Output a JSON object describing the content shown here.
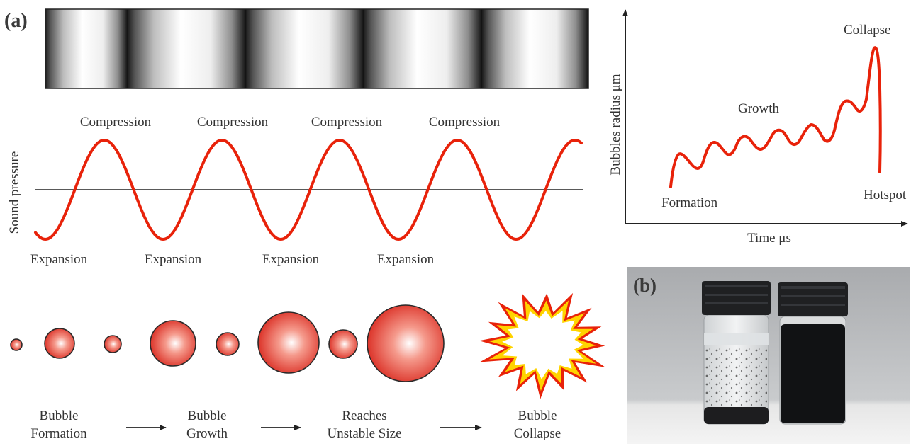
{
  "panel_a": {
    "tag": "(a)",
    "wave": {
      "ylabel": "Sound pressure",
      "peaks": [
        "Compression",
        "Compression",
        "Compression",
        "Compression"
      ],
      "troughs": [
        "Expansion",
        "Expansion",
        "Expansion",
        "Expansion"
      ]
    },
    "stages": [
      {
        "line1": "Bubble",
        "line2": "Formation"
      },
      {
        "line1": "Bubble",
        "line2": "Growth"
      },
      {
        "line1": "Reaches",
        "line2": "Unstable Size"
      },
      {
        "line1": "Bubble",
        "line2": "Collapse"
      }
    ]
  },
  "radius_plot": {
    "ylabel": "Bubbles radius  μm",
    "xlabel": "Time μs",
    "annotations": {
      "formation": "Formation",
      "growth": "Growth",
      "collapse": "Collapse",
      "hotspot": "Hotspot"
    }
  },
  "panel_b": {
    "tag": "(b)",
    "description_visible": false
  },
  "colors": {
    "wave_red": "#e8220a",
    "bubble_red": "#e53a2a",
    "burst_outer": "#e8220a",
    "burst_mid": "#ffd400",
    "burst_inner": "#ffffff",
    "axis": "#222222"
  }
}
